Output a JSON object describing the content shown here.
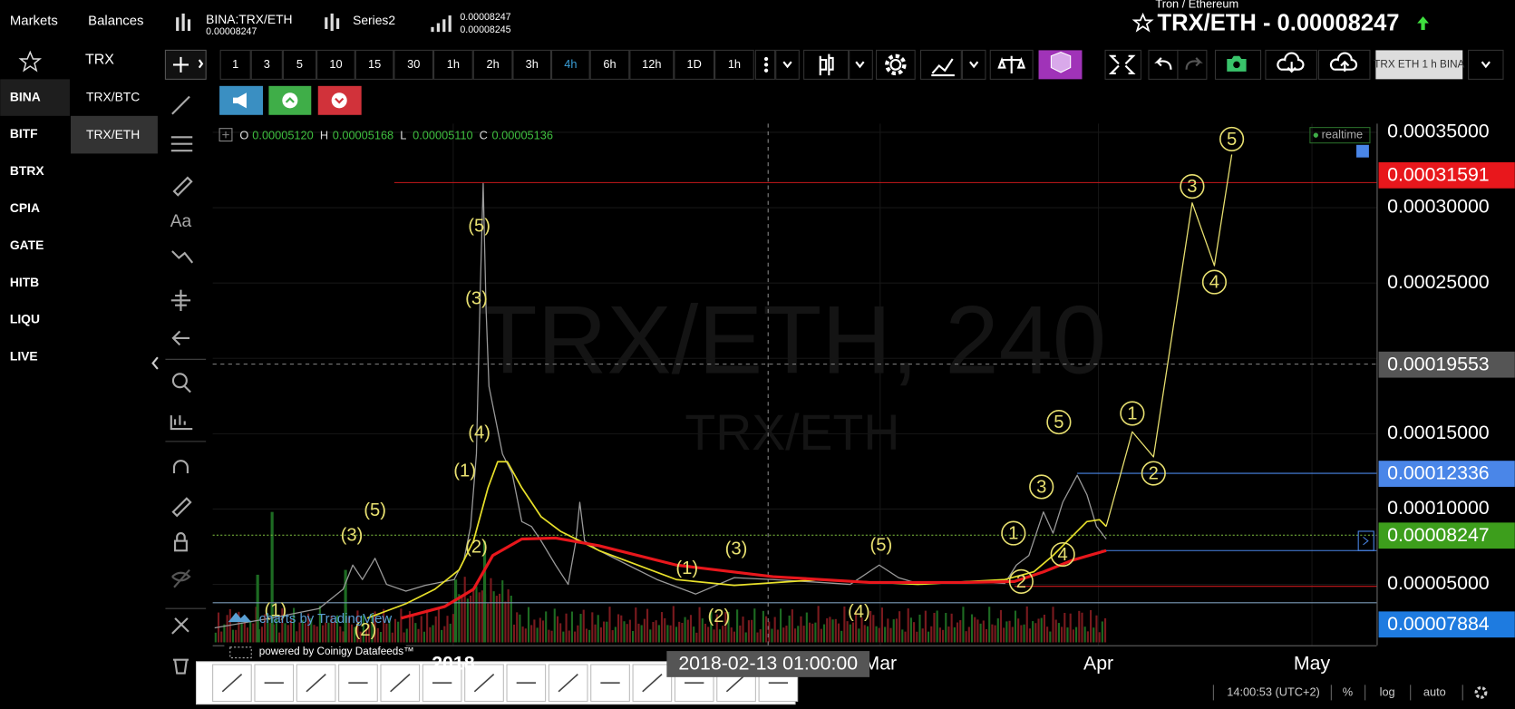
{
  "sidebar": {
    "tabs": [
      "Markets",
      "Balances"
    ],
    "exchanges": [
      "BINA",
      "BITF",
      "BTRX",
      "CPIA",
      "GATE",
      "HITB",
      "LIQU",
      "LIVE"
    ],
    "markets": [
      "TRX",
      "TRX/BTC",
      "TRX/ETH"
    ]
  },
  "header": {
    "symbol": "BINA:TRX/ETH",
    "symbol_price": "0.00008247",
    "series": "Series2",
    "bid": "0.00008247",
    "ask": "0.00008245",
    "pair_name": "Tron / Ethereum",
    "title": "TRX/ETH - 0.00008247"
  },
  "toolbar": {
    "intervals": [
      "1",
      "3",
      "5",
      "10",
      "15",
      "30",
      "1h",
      "2h",
      "3h",
      "4h",
      "6h",
      "12h",
      "1D",
      "1h"
    ],
    "active_interval": 9,
    "chart_label": "TRX ETH 1 h BINA"
  },
  "tools_text": "Aa",
  "ohlc": [
    {
      "key": "O",
      "value": "0.00005120"
    },
    {
      "key": "H",
      "value": "0.00005168"
    },
    {
      "key": "L",
      "value": "0.00005110"
    },
    {
      "key": "C",
      "value": "0.00005136"
    }
  ],
  "watermark": {
    "title": "TRX/ETH, 240",
    "subtitle": "TRX/ETH"
  },
  "realtime": "realtime",
  "price_axis": {
    "ticks": [
      "0.00035000",
      "0.00030000",
      "0.00025000",
      "0.00015000",
      "0.00010000",
      "0.00005000"
    ],
    "tags": [
      {
        "label": "0.00031591",
        "color": "#e8171c"
      },
      {
        "label": "0.00019553",
        "color": "#555555"
      },
      {
        "label": "0.00012336",
        "color": "#4a86e8"
      },
      {
        "label": "0.00008247",
        "color": "#3d9e1c"
      },
      {
        "label": "0.00007884",
        "color": "#1e7be0"
      }
    ]
  },
  "time_axis": {
    "labels": [
      "2018",
      "Mar",
      "Apr",
      "May"
    ],
    "crosshair": "2018-02-13 01:00:00"
  },
  "waves": [
    "(5)",
    "(3)",
    "(4)",
    "(1)",
    "(2)",
    "(3)",
    "(5)",
    "(1)",
    "(2)",
    "(1)",
    "(2)",
    "(3)",
    "(4)",
    "(5)",
    "1",
    "2",
    "3",
    "4",
    "5",
    "1",
    "2",
    "3",
    "4",
    "5"
  ],
  "credits": {
    "tradingview": "charts by TradingView",
    "datafeed": "powered by Coinigy Datafeeds™"
  },
  "status": {
    "time": "14:00:53 (UTC+2)",
    "percent": "%",
    "log": "log",
    "auto": "auto"
  }
}
